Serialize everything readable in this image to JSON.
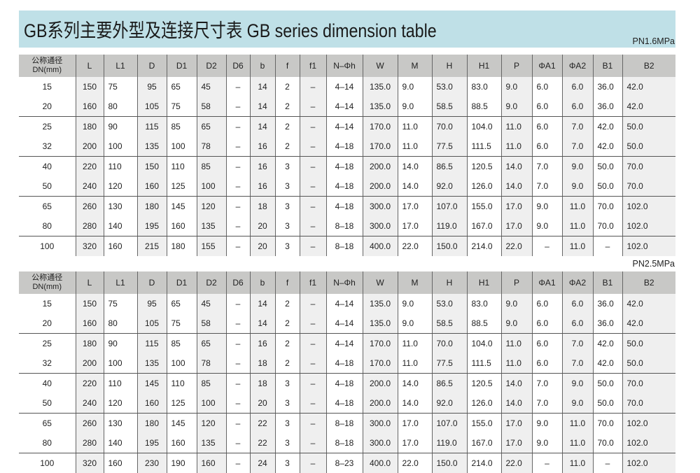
{
  "title": "GB系列主要外型及连接尺寸表 GB series dimension table",
  "colors": {
    "banner": "#bfe0e7",
    "header": "#c8c8c6",
    "shade": "#efefef"
  },
  "headers": [
    "公称通径\nDN(mm)",
    "L",
    "L1",
    "D",
    "D1",
    "D2",
    "D6",
    "b",
    "f",
    "f1",
    "N–Φh",
    "W",
    "M",
    "H",
    "H1",
    "P",
    "ΦA1",
    "ΦA2",
    "B1",
    "B2"
  ],
  "tables": [
    {
      "pressure": "PN1.6MPa",
      "rows": [
        [
          "15",
          "150",
          "75",
          "95",
          "65",
          "45",
          "–",
          "14",
          "2",
          "–",
          "4–14",
          "135.0",
          "9.0",
          "53.0",
          "83.0",
          "9.0",
          "6.0",
          "6.0",
          "36.0",
          "42.0"
        ],
        [
          "20",
          "160",
          "80",
          "105",
          "75",
          "58",
          "–",
          "14",
          "2",
          "–",
          "4–14",
          "135.0",
          "9.0",
          "58.5",
          "88.5",
          "9.0",
          "6.0",
          "6.0",
          "36.0",
          "42.0"
        ],
        [
          "25",
          "180",
          "90",
          "115",
          "85",
          "65",
          "–",
          "14",
          "2",
          "–",
          "4–14",
          "170.0",
          "11.0",
          "70.0",
          "104.0",
          "11.0",
          "6.0",
          "7.0",
          "42.0",
          "50.0"
        ],
        [
          "32",
          "200",
          "100",
          "135",
          "100",
          "78",
          "–",
          "16",
          "2",
          "–",
          "4–18",
          "170.0",
          "11.0",
          "77.5",
          "111.5",
          "11.0",
          "6.0",
          "7.0",
          "42.0",
          "50.0"
        ],
        [
          "40",
          "220",
          "110",
          "150",
          "110",
          "85",
          "–",
          "16",
          "3",
          "–",
          "4–18",
          "200.0",
          "14.0",
          "86.5",
          "120.5",
          "14.0",
          "7.0",
          "9.0",
          "50.0",
          "70.0"
        ],
        [
          "50",
          "240",
          "120",
          "160",
          "125",
          "100",
          "–",
          "16",
          "3",
          "–",
          "4–18",
          "200.0",
          "14.0",
          "92.0",
          "126.0",
          "14.0",
          "7.0",
          "9.0",
          "50.0",
          "70.0"
        ],
        [
          "65",
          "260",
          "130",
          "180",
          "145",
          "120",
          "–",
          "18",
          "3",
          "–",
          "4–18",
          "300.0",
          "17.0",
          "107.0",
          "155.0",
          "17.0",
          "9.0",
          "11.0",
          "70.0",
          "102.0"
        ],
        [
          "80",
          "280",
          "140",
          "195",
          "160",
          "135",
          "–",
          "20",
          "3",
          "–",
          "8–18",
          "300.0",
          "17.0",
          "119.0",
          "167.0",
          "17.0",
          "9.0",
          "11.0",
          "70.0",
          "102.0"
        ],
        [
          "100",
          "320",
          "160",
          "215",
          "180",
          "155",
          "–",
          "20",
          "3",
          "–",
          "8–18",
          "400.0",
          "22.0",
          "150.0",
          "214.0",
          "22.0",
          "–",
          "11.0",
          "–",
          "102.0"
        ]
      ]
    },
    {
      "pressure": "PN2.5MPa",
      "rows": [
        [
          "15",
          "150",
          "75",
          "95",
          "65",
          "45",
          "–",
          "14",
          "2",
          "–",
          "4–14",
          "135.0",
          "9.0",
          "53.0",
          "83.0",
          "9.0",
          "6.0",
          "6.0",
          "36.0",
          "42.0"
        ],
        [
          "20",
          "160",
          "80",
          "105",
          "75",
          "58",
          "–",
          "14",
          "2",
          "–",
          "4–14",
          "135.0",
          "9.0",
          "58.5",
          "88.5",
          "9.0",
          "6.0",
          "6.0",
          "36.0",
          "42.0"
        ],
        [
          "25",
          "180",
          "90",
          "115",
          "85",
          "65",
          "–",
          "16",
          "2",
          "–",
          "4–14",
          "170.0",
          "11.0",
          "70.0",
          "104.0",
          "11.0",
          "6.0",
          "7.0",
          "42.0",
          "50.0"
        ],
        [
          "32",
          "200",
          "100",
          "135",
          "100",
          "78",
          "–",
          "18",
          "2",
          "–",
          "4–18",
          "170.0",
          "11.0",
          "77.5",
          "111.5",
          "11.0",
          "6.0",
          "7.0",
          "42.0",
          "50.0"
        ],
        [
          "40",
          "220",
          "110",
          "145",
          "110",
          "85",
          "–",
          "18",
          "3",
          "–",
          "4–18",
          "200.0",
          "14.0",
          "86.5",
          "120.5",
          "14.0",
          "7.0",
          "9.0",
          "50.0",
          "70.0"
        ],
        [
          "50",
          "240",
          "120",
          "160",
          "125",
          "100",
          "–",
          "20",
          "3",
          "–",
          "4–18",
          "200.0",
          "14.0",
          "92.0",
          "126.0",
          "14.0",
          "7.0",
          "9.0",
          "50.0",
          "70.0"
        ],
        [
          "65",
          "260",
          "130",
          "180",
          "145",
          "120",
          "–",
          "22",
          "3",
          "–",
          "8–18",
          "300.0",
          "17.0",
          "107.0",
          "155.0",
          "17.0",
          "9.0",
          "11.0",
          "70.0",
          "102.0"
        ],
        [
          "80",
          "280",
          "140",
          "195",
          "160",
          "135",
          "–",
          "22",
          "3",
          "–",
          "8–18",
          "300.0",
          "17.0",
          "119.0",
          "167.0",
          "17.0",
          "9.0",
          "11.0",
          "70.0",
          "102.0"
        ],
        [
          "100",
          "320",
          "160",
          "230",
          "190",
          "160",
          "–",
          "24",
          "3",
          "–",
          "8–23",
          "400.0",
          "22.0",
          "150.0",
          "214.0",
          "22.0",
          "–",
          "11.0",
          "–",
          "102.0"
        ]
      ]
    }
  ]
}
